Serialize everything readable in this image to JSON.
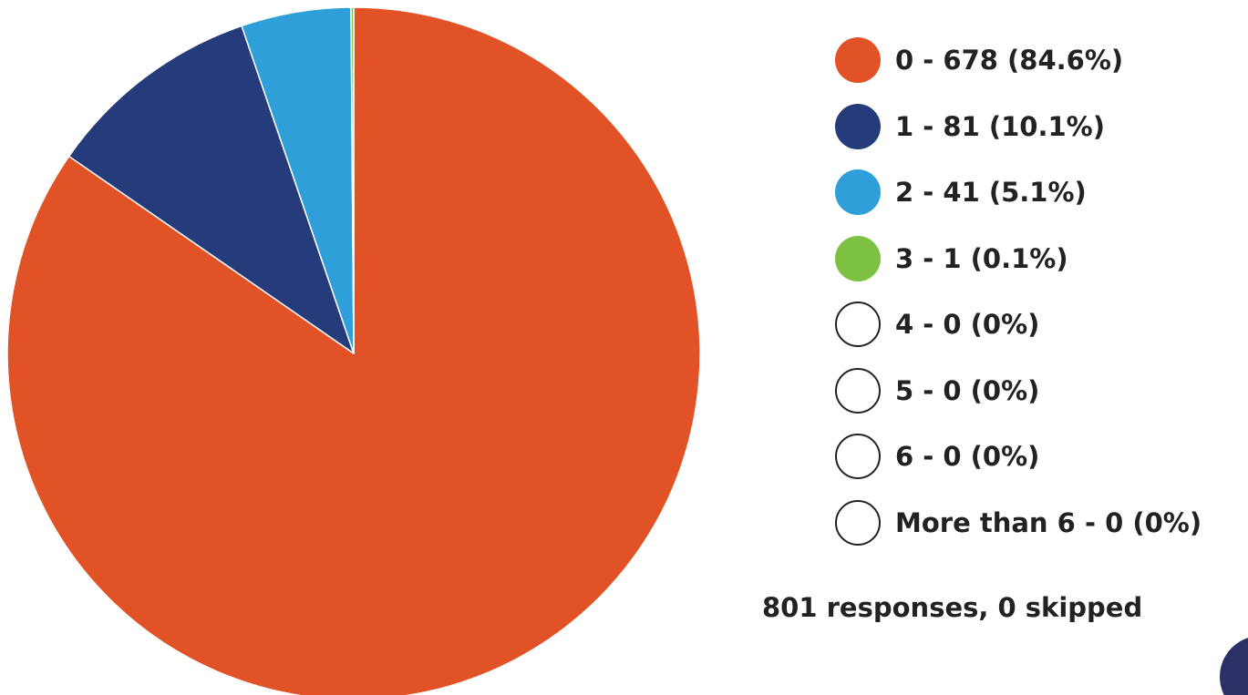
{
  "chart_data": {
    "type": "pie",
    "slices": [
      {
        "label": "0 - 678 (84.6%)",
        "value": 678,
        "color": "#e15227"
      },
      {
        "label": "1 - 81 (10.1%)",
        "value": 81,
        "color": "#263b7a"
      },
      {
        "label": "2 - 41 (5.1%)",
        "value": 41,
        "color": "#2f9fd9"
      },
      {
        "label": "3 - 1 (0.1%)",
        "value": 1,
        "color": "#7dc142"
      },
      {
        "label": "4 - 0 (0%)",
        "value": 0,
        "color": "#ffffff"
      },
      {
        "label": "5 - 0 (0%)",
        "value": 0,
        "color": "#ffffff"
      },
      {
        "label": "6 - 0 (0%)",
        "value": 0,
        "color": "#ffffff"
      },
      {
        "label": "More than 6 - 0 (0%)",
        "value": 0,
        "color": "#ffffff"
      }
    ],
    "legend_position": "right",
    "start_direction": "clockwise from top"
  },
  "summary": {
    "text": "801 responses, 0 skipped"
  }
}
